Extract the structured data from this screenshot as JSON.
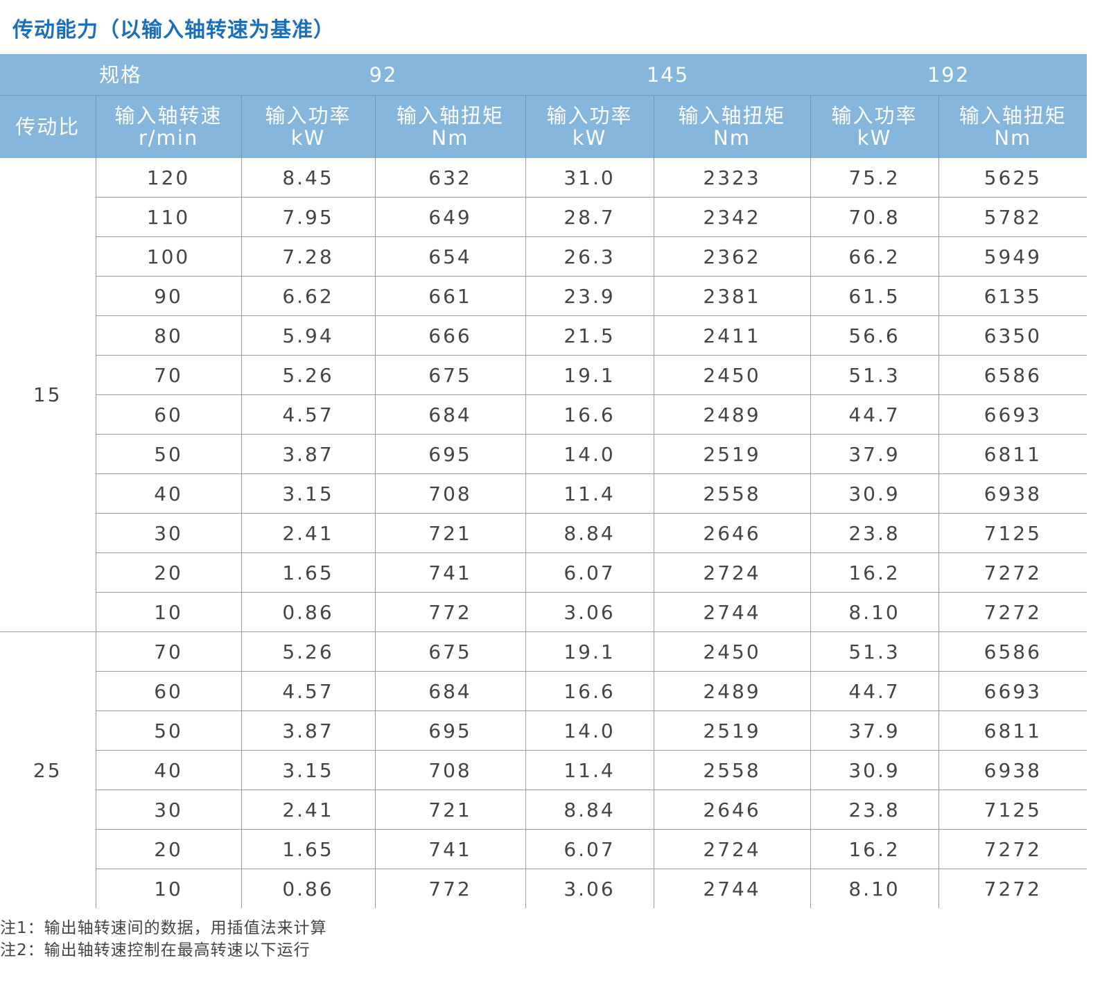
{
  "title": "传动能力（以输入轴转速为基准）",
  "header": {
    "spec_label": "规格",
    "ratio_label": "传动比",
    "speed_label": "输入轴转速",
    "speed_unit": "r/min",
    "models": [
      {
        "name": "92",
        "power_label": "输入功率",
        "power_unit": "kW",
        "torque_label": "输入轴扭矩",
        "torque_unit": "Nm"
      },
      {
        "name": "145",
        "power_label": "输入功率",
        "power_unit": "kW",
        "torque_label": "输入轴扭矩",
        "torque_unit": "Nm"
      },
      {
        "name": "192",
        "power_label": "输入功率",
        "power_unit": "kW",
        "torque_label": "输入轴扭矩",
        "torque_unit": "Nm"
      }
    ]
  },
  "groups": [
    {
      "ratio": "15",
      "rows": [
        [
          "120",
          "8.45",
          "632",
          "31.0",
          "2323",
          "75.2",
          "5625"
        ],
        [
          "110",
          "7.95",
          "649",
          "28.7",
          "2342",
          "70.8",
          "5782"
        ],
        [
          "100",
          "7.28",
          "654",
          "26.3",
          "2362",
          "66.2",
          "5949"
        ],
        [
          "90",
          "6.62",
          "661",
          "23.9",
          "2381",
          "61.5",
          "6135"
        ],
        [
          "80",
          "5.94",
          "666",
          "21.5",
          "2411",
          "56.6",
          "6350"
        ],
        [
          "70",
          "5.26",
          "675",
          "19.1",
          "2450",
          "51.3",
          "6586"
        ],
        [
          "60",
          "4.57",
          "684",
          "16.6",
          "2489",
          "44.7",
          "6693"
        ],
        [
          "50",
          "3.87",
          "695",
          "14.0",
          "2519",
          "37.9",
          "6811"
        ],
        [
          "40",
          "3.15",
          "708",
          "11.4",
          "2558",
          "30.9",
          "6938"
        ],
        [
          "30",
          "2.41",
          "721",
          "8.84",
          "2646",
          "23.8",
          "7125"
        ],
        [
          "20",
          "1.65",
          "741",
          "6.07",
          "2724",
          "16.2",
          "7272"
        ],
        [
          "10",
          "0.86",
          "772",
          "3.06",
          "2744",
          "8.10",
          "7272"
        ]
      ]
    },
    {
      "ratio": "25",
      "rows": [
        [
          "70",
          "5.26",
          "675",
          "19.1",
          "2450",
          "51.3",
          "6586"
        ],
        [
          "60",
          "4.57",
          "684",
          "16.6",
          "2489",
          "44.7",
          "6693"
        ],
        [
          "50",
          "3.87",
          "695",
          "14.0",
          "2519",
          "37.9",
          "6811"
        ],
        [
          "40",
          "3.15",
          "708",
          "11.4",
          "2558",
          "30.9",
          "6938"
        ],
        [
          "30",
          "2.41",
          "721",
          "8.84",
          "2646",
          "23.8",
          "7125"
        ],
        [
          "20",
          "1.65",
          "741",
          "6.07",
          "2724",
          "16.2",
          "7272"
        ],
        [
          "10",
          "0.86",
          "772",
          "3.06",
          "2744",
          "8.10",
          "7272"
        ]
      ]
    }
  ],
  "notes": [
    "注1：输出轴转速间的数据，用插值法来计算",
    "注2：输出轴转速控制在最高转速以下运行"
  ],
  "colors": {
    "title": "#1a6fb8",
    "header_bg": "#86b6dc",
    "text": "#444444"
  }
}
